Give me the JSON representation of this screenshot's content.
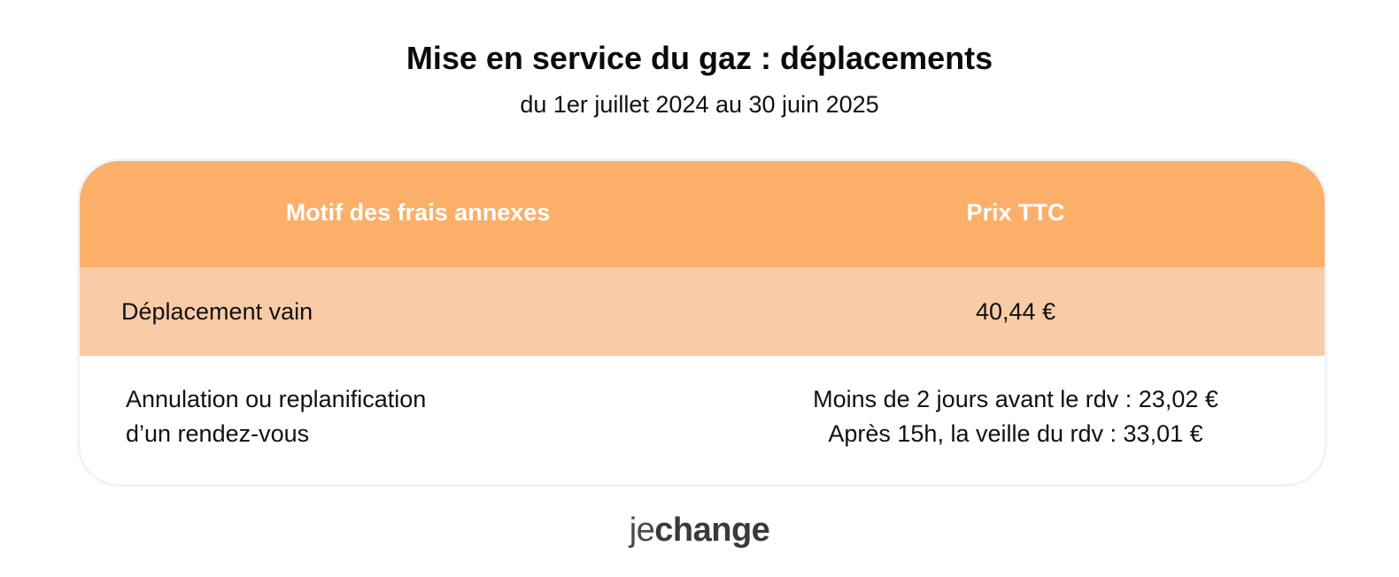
{
  "header": {
    "title": "Mise en service du gaz : déplacements",
    "subtitle": "du 1er juillet 2024 au 30 juin 2025"
  },
  "table": {
    "columns": [
      "Motif des frais annexes",
      "Prix TTC"
    ],
    "rows": [
      {
        "motif": [
          "Déplacement vain"
        ],
        "prix": [
          "40,44 €"
        ]
      },
      {
        "motif": [
          "Annulation ou replanification",
          "d’un rendez-vous"
        ],
        "prix": [
          "Moins de 2 jours avant le rdv : 23,02 €",
          "Après 15h, la veille du rdv : 33,01 €"
        ]
      }
    ],
    "colors": {
      "header_bg": "#fbaf69",
      "row1_bg": "#facba7",
      "row2_bg": "#ffffff",
      "header_text": "#ffffff"
    }
  },
  "logo": {
    "part1": "je",
    "part2": "change"
  }
}
